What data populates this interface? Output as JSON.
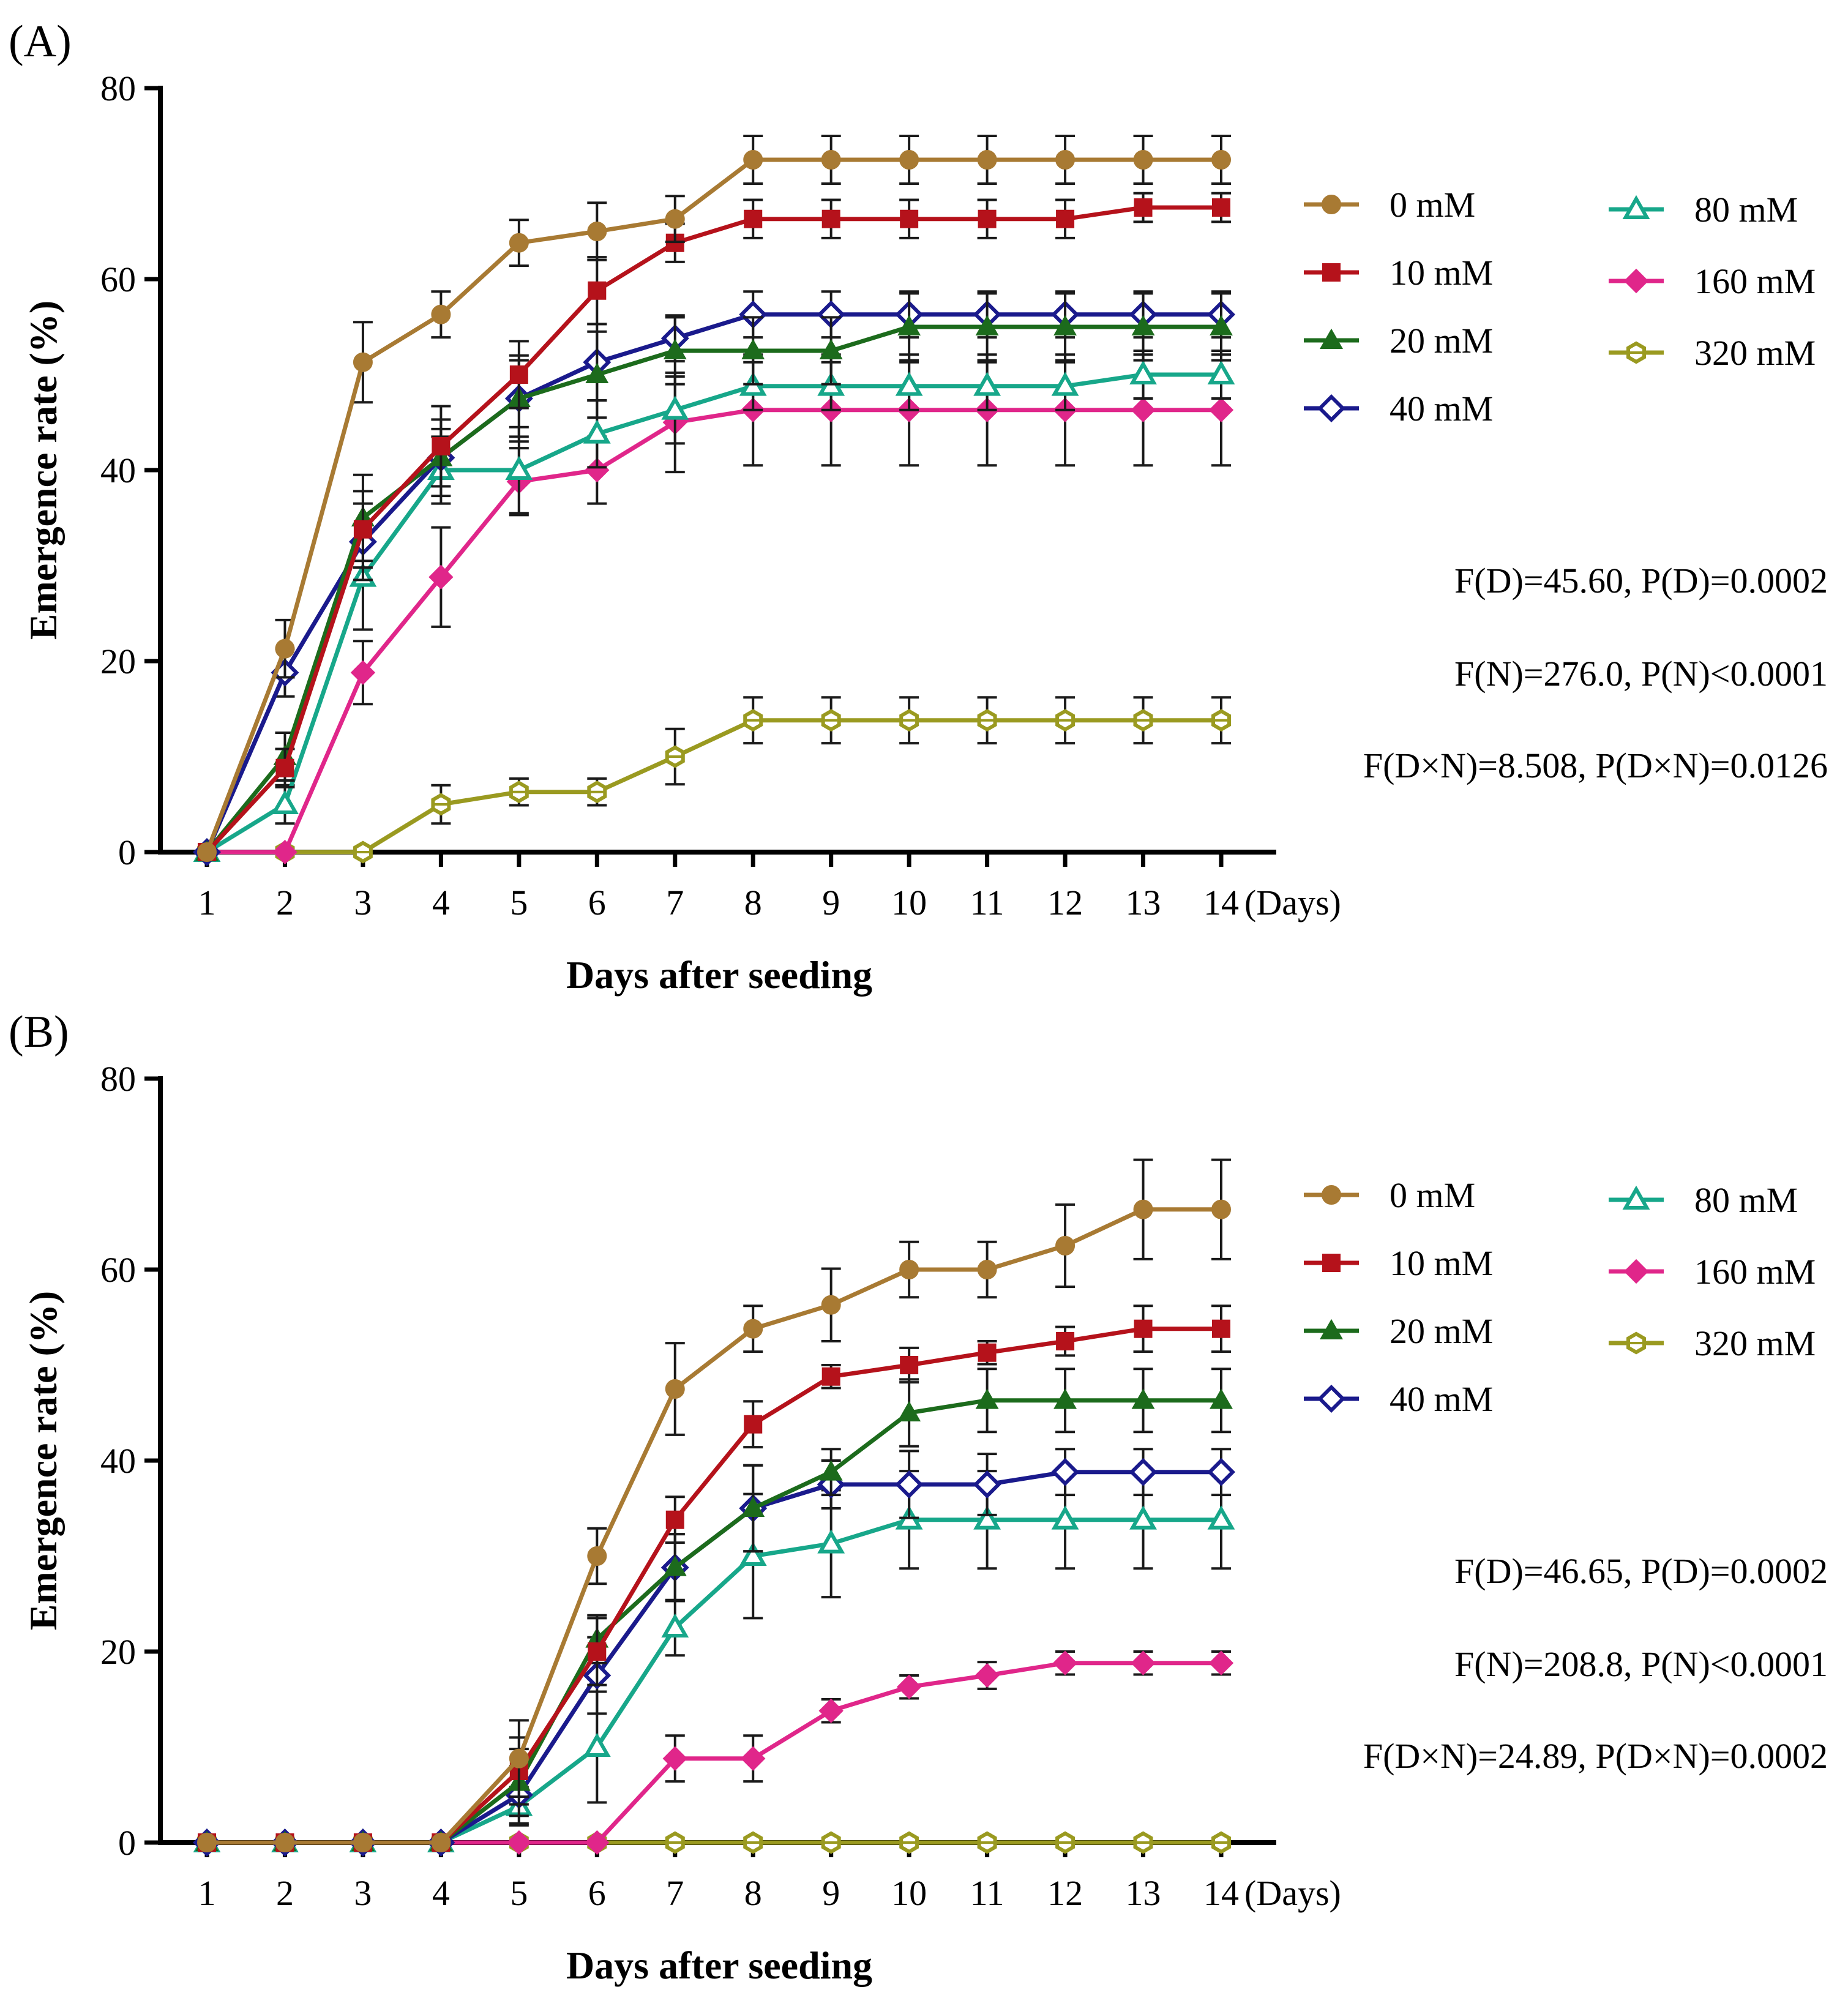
{
  "figure": {
    "legend_labels": [
      "0 mM",
      "10 mM",
      "20 mM",
      "40 mM",
      "80 mM",
      "160 mM",
      "320 mM"
    ],
    "series_styles": [
      {
        "color": "#a87a33",
        "marker": "circle"
      },
      {
        "color": "#b5121b",
        "marker": "square"
      },
      {
        "color": "#1c6b1c",
        "marker": "triangle"
      },
      {
        "color": "#1a1a8c",
        "marker": "diamond-open"
      },
      {
        "color": "#17a78a",
        "marker": "triangle-open"
      },
      {
        "color": "#e0268a",
        "marker": "diamond"
      },
      {
        "color": "#9a9a20",
        "marker": "hexagon"
      }
    ]
  },
  "chart_data": [
    {
      "type": "line",
      "panel_label": "(A)",
      "xlabel": "Days after seeding",
      "ylabel": "Emergence rate (%)",
      "x_unit_label": "(Days)",
      "x": [
        1,
        2,
        3,
        4,
        5,
        6,
        7,
        8,
        9,
        10,
        11,
        12,
        13,
        14
      ],
      "xlim": [
        0.2,
        14.7
      ],
      "ylim": [
        0,
        80
      ],
      "yticks": [
        0,
        20,
        40,
        60,
        80
      ],
      "series": [
        {
          "name": "0 mM",
          "values": [
            0,
            21.3,
            51.3,
            56.3,
            63.8,
            65,
            66.3,
            72.5,
            72.5,
            72.5,
            72.5,
            72.5,
            72.5,
            72.5
          ],
          "errors": [
            0,
            3,
            4.2,
            2.4,
            2.4,
            3,
            2.4,
            2.5,
            2.5,
            2.5,
            2.5,
            2.5,
            2.5,
            2.5
          ]
        },
        {
          "name": "10 mM",
          "values": [
            0,
            8.8,
            33.8,
            42.5,
            50,
            58.8,
            63.8,
            66.3,
            66.3,
            66.3,
            66.3,
            66.3,
            67.5,
            67.5
          ],
          "errors": [
            0,
            2,
            4,
            4.2,
            3.5,
            3.5,
            2,
            2,
            2,
            2,
            2,
            2,
            1.5,
            1.5
          ]
        },
        {
          "name": "20 mM",
          "values": [
            0,
            10,
            35,
            41.3,
            47.5,
            50,
            52.5,
            52.5,
            52.5,
            55,
            55,
            55,
            55,
            55
          ],
          "errors": [
            0,
            2.5,
            4.5,
            4,
            4.5,
            4.5,
            3.5,
            3.5,
            3.5,
            3.5,
            3.5,
            3.5,
            3.5,
            3.5
          ]
        },
        {
          "name": "40 mM",
          "values": [
            0,
            18.8,
            32.5,
            41.3,
            47.5,
            51.3,
            53.8,
            56.3,
            56.3,
            56.3,
            56.3,
            56.3,
            56.3,
            56.3
          ],
          "errors": [
            0,
            2.5,
            4,
            3,
            4,
            4,
            2.4,
            2.4,
            2.4,
            2.4,
            2.4,
            2.4,
            2.4,
            2.4
          ]
        },
        {
          "name": "80 mM",
          "values": [
            0,
            5,
            28.8,
            40,
            40,
            43.8,
            46.3,
            48.8,
            48.8,
            48.8,
            48.8,
            48.8,
            50,
            50
          ],
          "errors": [
            0,
            2,
            5.5,
            3.5,
            4.5,
            3.5,
            3.5,
            2.5,
            2.5,
            2.5,
            2.5,
            2.5,
            2.5,
            2.5
          ]
        },
        {
          "name": "160 mM",
          "values": [
            0,
            0,
            18.8,
            28.8,
            38.8,
            40,
            45,
            46.3,
            46.3,
            46.3,
            46.3,
            46.3,
            46.3,
            46.3
          ],
          "errors": [
            0,
            0,
            3.3,
            5.2,
            3.5,
            3.5,
            5.2,
            5.8,
            5.8,
            5.8,
            5.8,
            5.8,
            5.8,
            5.8
          ]
        },
        {
          "name": "320 mM",
          "values": [
            0,
            0,
            0,
            5,
            6.3,
            6.3,
            10,
            13.8,
            13.8,
            13.8,
            13.8,
            13.8,
            13.8,
            13.8
          ],
          "errors": [
            0,
            0,
            0,
            2,
            1.4,
            1.4,
            2.9,
            2.4,
            2.4,
            2.4,
            2.4,
            2.4,
            2.4,
            2.4
          ]
        }
      ],
      "annotations": [
        "F(D)=45.60, P(D)=0.0002",
        "F(N)=276.0, P(N)<0.0001",
        "F(D×N)=8.508, P(D×N)=0.0126"
      ]
    },
    {
      "type": "line",
      "panel_label": "(B)",
      "xlabel": "Days after seeding",
      "ylabel": "Emergence rate (%)",
      "x_unit_label": "(Days)",
      "x": [
        1,
        2,
        3,
        4,
        5,
        6,
        7,
        8,
        9,
        10,
        11,
        12,
        13,
        14
      ],
      "xlim": [
        0.2,
        14.7
      ],
      "ylim": [
        0,
        80
      ],
      "yticks": [
        0,
        20,
        40,
        60,
        80
      ],
      "series": [
        {
          "name": "0 mM",
          "values": [
            0,
            0,
            0,
            0,
            8.8,
            30,
            47.5,
            53.8,
            56.3,
            60,
            60,
            62.5,
            66.3,
            66.3
          ],
          "errors": [
            0,
            0,
            0,
            0,
            4,
            2.9,
            4.8,
            2.4,
            3.8,
            2.9,
            2.9,
            4.3,
            5.2,
            5.2
          ]
        },
        {
          "name": "10 mM",
          "values": [
            0,
            0,
            0,
            0,
            7.5,
            20,
            33.8,
            43.8,
            48.8,
            50,
            51.3,
            52.5,
            53.8,
            53.8
          ],
          "errors": [
            0,
            0,
            0,
            0,
            3.5,
            3.5,
            2.4,
            2.4,
            1.2,
            1.8,
            1.2,
            1.5,
            2.4,
            2.4
          ]
        },
        {
          "name": "20 mM",
          "values": [
            0,
            0,
            0,
            0,
            6.3,
            21.3,
            28.8,
            35,
            38.8,
            45,
            46.3,
            46.3,
            46.3,
            46.3
          ],
          "errors": [
            0,
            0,
            0,
            0,
            3.5,
            2.5,
            3.5,
            4.5,
            2.4,
            3.5,
            3.3,
            3.3,
            3.3,
            3.3
          ]
        },
        {
          "name": "40 mM",
          "values": [
            0,
            0,
            0,
            0,
            5,
            17.5,
            28.8,
            35,
            37.5,
            37.5,
            37.5,
            38.8,
            38.8,
            38.8
          ],
          "errors": [
            0,
            0,
            0,
            0,
            3,
            4,
            3.5,
            4.5,
            2.5,
            3.5,
            3.2,
            2.4,
            2.4,
            2.4
          ]
        },
        {
          "name": "80 mM",
          "values": [
            0,
            0,
            0,
            0,
            3.8,
            10,
            22.5,
            30,
            31.3,
            33.8,
            33.8,
            33.8,
            33.8,
            33.8
          ],
          "errors": [
            0,
            0,
            0,
            0,
            2,
            5.8,
            2.9,
            6.5,
            5.6,
            5.1,
            5.1,
            5.1,
            5.1,
            5.1
          ]
        },
        {
          "name": "160 mM",
          "values": [
            0,
            0,
            0,
            0,
            0,
            0,
            8.8,
            8.8,
            13.8,
            16.3,
            17.5,
            18.8,
            18.8,
            18.8
          ],
          "errors": [
            0,
            0,
            0,
            0,
            0,
            0,
            2.4,
            2.4,
            1.2,
            1.2,
            1.4,
            1.2,
            1.2,
            1.2
          ]
        },
        {
          "name": "320 mM",
          "values": [
            0,
            0,
            0,
            0,
            0,
            0,
            0,
            0,
            0,
            0,
            0,
            0,
            0,
            0
          ],
          "errors": [
            0,
            0,
            0,
            0,
            0,
            0,
            0,
            0,
            0,
            0,
            0,
            0,
            0,
            0
          ]
        }
      ],
      "annotations": [
        "F(D)=46.65, P(D)=0.0002",
        "F(N)=208.8, P(N)<0.0001",
        "F(D×N)=24.89, P(D×N)=0.0002"
      ]
    }
  ]
}
